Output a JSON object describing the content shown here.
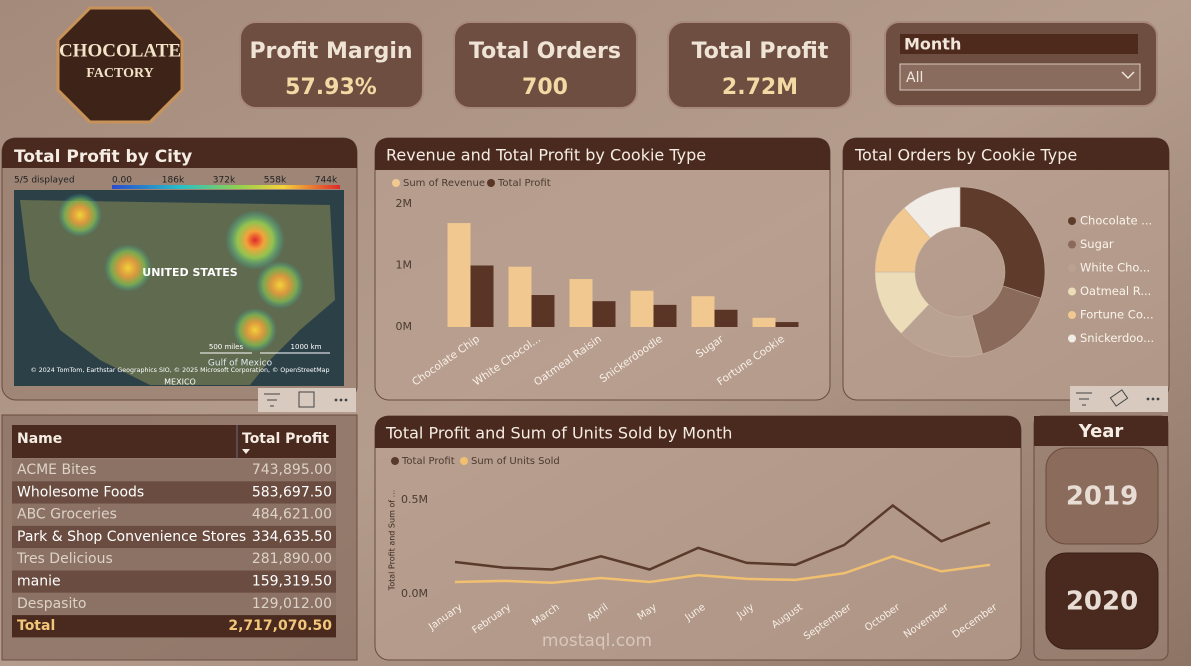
{
  "logo": {
    "line1": "CHOCOLATE",
    "line2": "FACTORY"
  },
  "kpis": [
    {
      "title": "Profit Margin",
      "value": "57.93%"
    },
    {
      "title": "Total Orders",
      "value": "700"
    },
    {
      "title": "Total Profit",
      "value": "2.72M"
    }
  ],
  "month_slicer": {
    "title": "Month",
    "selected": "All"
  },
  "map": {
    "title": "Total Profit by City",
    "status": "5/5 displayed",
    "legend_ticks": [
      {
        "value": 0,
        "label": "0.00"
      },
      {
        "value": 186000,
        "label": "186k"
      },
      {
        "value": 372000,
        "label": "372k"
      },
      {
        "value": 558000,
        "label": "558k"
      },
      {
        "value": 744000,
        "label": "744k"
      }
    ],
    "labels": [
      "UNITED STATES",
      "Gulf of Mexico",
      "MEXICO"
    ],
    "scale": [
      "500 miles",
      "1000 km"
    ],
    "attribution": "© 2024 TomTom, Earthstar Geographics SIO, © 2025 Microsoft Corporation, © OpenStreetMap"
  },
  "table": {
    "columns": [
      "Name",
      "Total Profit"
    ],
    "rows": [
      [
        "ACME Bites",
        "743,895.00"
      ],
      [
        "Wholesome Foods",
        "583,697.50"
      ],
      [
        "ABC Groceries",
        "484,621.00"
      ],
      [
        "Park & Shop Convenience Stores",
        "334,635.50"
      ],
      [
        "Tres Delicious",
        "281,890.00"
      ],
      [
        "manie",
        "159,319.50"
      ],
      [
        "Despasito",
        "129,012.00"
      ]
    ],
    "total": [
      "Total",
      "2,717,070.50"
    ]
  },
  "chart_data": [
    {
      "type": "bar",
      "title": "Revenue and Total Profit by Cookie Type",
      "categories": [
        "Chocolate Chip",
        "White Chocol...",
        "Oatmeal Raisin",
        "Snickerdoodle",
        "Sugar",
        "Fortune Cookie"
      ],
      "series": [
        {
          "name": "Sum of Revenue",
          "color": "#f0c890",
          "values": [
            1.69,
            0.98,
            0.78,
            0.59,
            0.5,
            0.15
          ]
        },
        {
          "name": "Total Profit",
          "color": "#5a3525",
          "values": [
            1.0,
            0.52,
            0.42,
            0.36,
            0.28,
            0.08
          ]
        }
      ],
      "ylim": [
        0,
        2
      ],
      "yticks": [
        {
          "value": 0,
          "label": "0M"
        },
        {
          "value": 1,
          "label": "1M"
        },
        {
          "value": 2,
          "label": "2M"
        }
      ]
    },
    {
      "type": "pie",
      "title": "Total Orders by Cookie Type",
      "categories": [
        "Chocolate ...",
        "Sugar",
        "White Cho...",
        "Oatmeal R...",
        "Fortune Co...",
        "Snickerdoo..."
      ],
      "values": [
        210,
        110,
        115,
        90,
        95,
        80
      ],
      "colors": [
        "#5e3b2b",
        "#8a6a5a",
        "#b9a292",
        "#ecdcb8",
        "#f0c890",
        "#f1ece6"
      ]
    },
    {
      "type": "line",
      "title": "Total Profit and Sum of Units Sold by Month",
      "y_label": "Total Profit and Sum of ...",
      "categories": [
        "January",
        "February",
        "March",
        "April",
        "May",
        "June",
        "July",
        "August",
        "September",
        "October",
        "November",
        "December"
      ],
      "series": [
        {
          "name": "Total Profit",
          "color": "#5a3a2a",
          "values": [
            0.17,
            0.14,
            0.13,
            0.2,
            0.13,
            0.245,
            0.165,
            0.155,
            0.26,
            0.47,
            0.28,
            0.38
          ]
        },
        {
          "name": "Sum of Units Sold",
          "color": "#f0c070",
          "values": [
            0.064,
            0.07,
            0.06,
            0.085,
            0.064,
            0.1,
            0.08,
            0.075,
            0.11,
            0.2,
            0.12,
            0.155
          ]
        }
      ],
      "ylim": [
        0,
        0.6
      ],
      "yticks": [
        {
          "value": 0,
          "label": "0.0M"
        },
        {
          "value": 0.5,
          "label": "0.5M"
        }
      ]
    }
  ],
  "year_slicer": {
    "title": "Year",
    "options": [
      "2019",
      "2020"
    ]
  },
  "watermark": "mostaql.com"
}
